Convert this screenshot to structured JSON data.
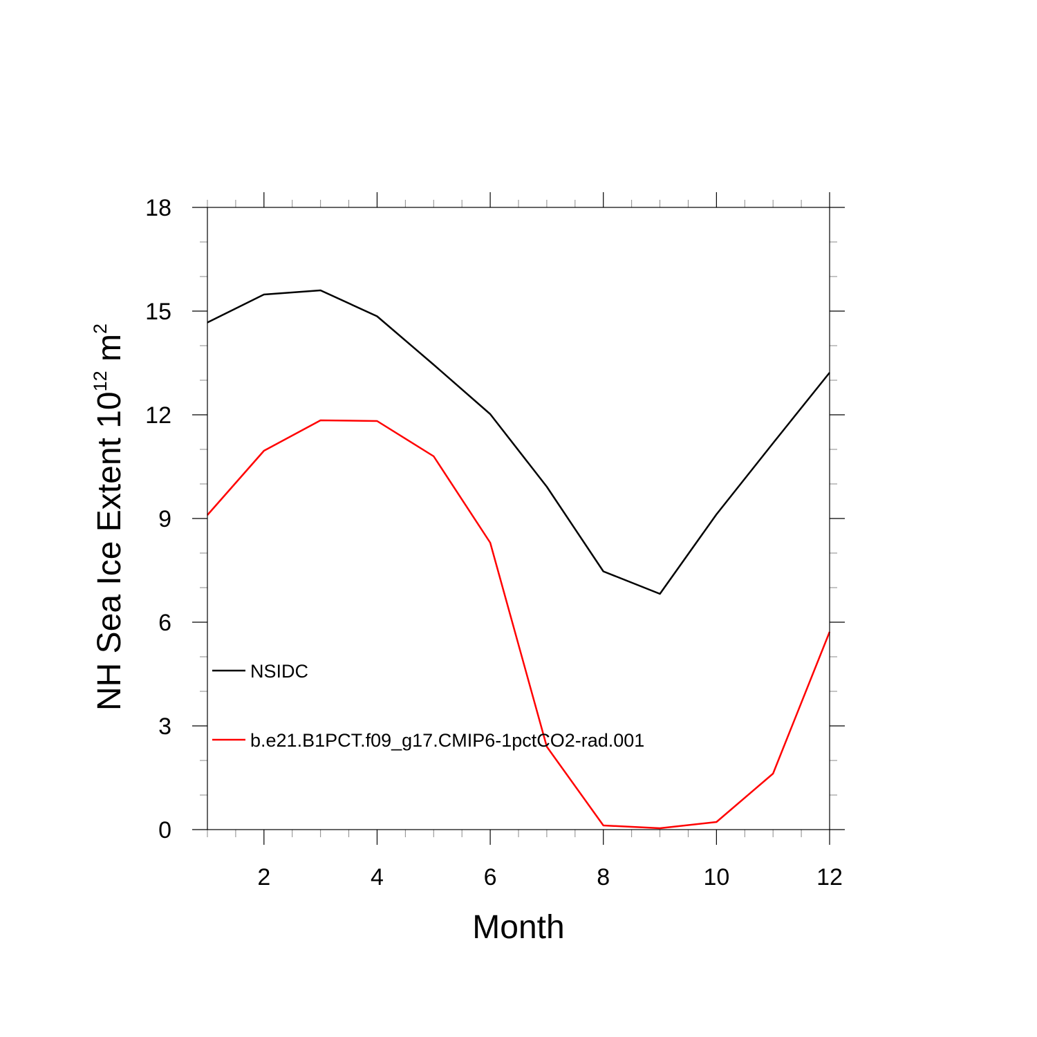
{
  "chart_data": {
    "type": "line",
    "title": "",
    "xlabel": "Month",
    "ylabel": {
      "main": "NH Sea Ice Extent 10",
      "exponent": "12",
      "unit": " m",
      "unit_exponent": "2"
    },
    "xlim": [
      1,
      12
    ],
    "ylim": [
      0,
      18
    ],
    "x_ticks": [
      2,
      4,
      6,
      8,
      10,
      12
    ],
    "y_ticks": [
      0,
      3,
      6,
      9,
      12,
      15,
      18
    ],
    "grid": false,
    "legend_position": "lower-left inside plot",
    "x": [
      1,
      2,
      3,
      4,
      5,
      6,
      7,
      8,
      9,
      10,
      11,
      12
    ],
    "series": [
      {
        "name": "NSIDC",
        "color": "#000000",
        "values": [
          14.67,
          15.48,
          15.6,
          14.85,
          13.45,
          12.02,
          9.92,
          7.47,
          6.82,
          9.12,
          11.18,
          13.22
        ]
      },
      {
        "name": "b.e21.B1PCT.f09_g17.CMIP6-1pctCO2-rad.001",
        "color": "#ff0000",
        "values": [
          9.1,
          10.96,
          11.84,
          11.82,
          10.8,
          8.3,
          2.4,
          0.12,
          0.04,
          0.22,
          1.62,
          5.72
        ]
      }
    ]
  }
}
